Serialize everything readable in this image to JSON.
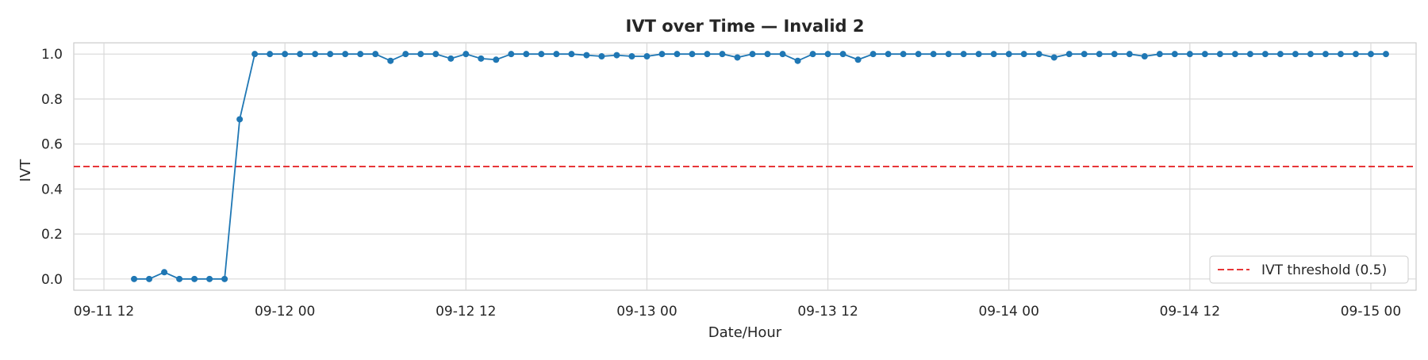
{
  "chart_data": {
    "type": "line",
    "title": "IVT over Time — Invalid 2",
    "xlabel": "Date/Hour",
    "ylabel": "IVT",
    "ylim": [
      -0.05,
      1.05
    ],
    "y_ticks": [
      0.0,
      0.2,
      0.4,
      0.6,
      0.8,
      1.0
    ],
    "y_tick_labels": [
      "0.0",
      "0.2",
      "0.4",
      "0.6",
      "0.8",
      "1.0"
    ],
    "x_range": [
      "2024-09-11 10:00",
      "2024-09-15 03:00"
    ],
    "x_ticks": [
      "2024-09-11 12:00",
      "2024-09-12 00:00",
      "2024-09-12 12:00",
      "2024-09-13 00:00",
      "2024-09-13 12:00",
      "2024-09-14 00:00",
      "2024-09-14 12:00",
      "2024-09-15 00:00"
    ],
    "x_tick_labels": [
      "09-11 12",
      "09-12 00",
      "09-12 12",
      "09-13 00",
      "09-13 12",
      "09-14 00",
      "09-14 12",
      "09-15 00"
    ],
    "grid": true,
    "legend_position": "lower-right",
    "series": [
      {
        "color": "#1f77b4",
        "x": [
          "2024-09-11 14:00",
          "2024-09-11 15:00",
          "2024-09-11 16:00",
          "2024-09-11 17:00",
          "2024-09-11 18:00",
          "2024-09-11 19:00",
          "2024-09-11 20:00",
          "2024-09-11 21:00",
          "2024-09-11 22:00",
          "2024-09-11 23:00",
          "2024-09-12 00:00",
          "2024-09-12 01:00",
          "2024-09-12 02:00",
          "2024-09-12 03:00",
          "2024-09-12 04:00",
          "2024-09-12 05:00",
          "2024-09-12 06:00",
          "2024-09-12 07:00",
          "2024-09-12 08:00",
          "2024-09-12 09:00",
          "2024-09-12 10:00",
          "2024-09-12 11:00",
          "2024-09-12 12:00",
          "2024-09-12 13:00",
          "2024-09-12 14:00",
          "2024-09-12 15:00",
          "2024-09-12 16:00",
          "2024-09-12 17:00",
          "2024-09-12 18:00",
          "2024-09-12 19:00",
          "2024-09-12 20:00",
          "2024-09-12 21:00",
          "2024-09-12 22:00",
          "2024-09-12 23:00",
          "2024-09-13 00:00",
          "2024-09-13 01:00",
          "2024-09-13 02:00",
          "2024-09-13 03:00",
          "2024-09-13 04:00",
          "2024-09-13 05:00",
          "2024-09-13 06:00",
          "2024-09-13 07:00",
          "2024-09-13 08:00",
          "2024-09-13 09:00",
          "2024-09-13 10:00",
          "2024-09-13 11:00",
          "2024-09-13 12:00",
          "2024-09-13 13:00",
          "2024-09-13 14:00",
          "2024-09-13 15:00",
          "2024-09-13 16:00",
          "2024-09-13 17:00",
          "2024-09-13 18:00",
          "2024-09-13 19:00",
          "2024-09-13 20:00",
          "2024-09-13 21:00",
          "2024-09-13 22:00",
          "2024-09-13 23:00",
          "2024-09-14 00:00",
          "2024-09-14 01:00",
          "2024-09-14 02:00",
          "2024-09-14 03:00",
          "2024-09-14 04:00",
          "2024-09-14 05:00",
          "2024-09-14 06:00",
          "2024-09-14 07:00",
          "2024-09-14 08:00",
          "2024-09-14 09:00",
          "2024-09-14 10:00",
          "2024-09-14 11:00",
          "2024-09-14 12:00",
          "2024-09-14 13:00",
          "2024-09-14 14:00",
          "2024-09-14 15:00",
          "2024-09-14 16:00",
          "2024-09-14 17:00",
          "2024-09-14 18:00",
          "2024-09-14 19:00",
          "2024-09-14 20:00",
          "2024-09-14 21:00",
          "2024-09-14 22:00",
          "2024-09-14 23:00",
          "2024-09-15 00:00",
          "2024-09-15 01:00"
        ],
        "values": [
          0.0,
          0.0,
          0.03,
          0.0,
          0.0,
          0.0,
          0.0,
          0.71,
          1.0,
          1.0,
          1.0,
          1.0,
          1.0,
          1.0,
          1.0,
          1.0,
          1.0,
          0.97,
          1.0,
          1.0,
          1.0,
          0.98,
          1.0,
          0.98,
          0.975,
          1.0,
          1.0,
          1.0,
          1.0,
          1.0,
          0.995,
          0.99,
          0.995,
          0.99,
          0.99,
          1.0,
          1.0,
          1.0,
          1.0,
          1.0,
          0.985,
          1.0,
          1.0,
          1.0,
          0.97,
          1.0,
          1.0,
          1.0,
          0.975,
          1.0,
          1.0,
          1.0,
          1.0,
          1.0,
          1.0,
          1.0,
          1.0,
          1.0,
          1.0,
          1.0,
          1.0,
          0.985,
          1.0,
          1.0,
          1.0,
          1.0,
          1.0,
          0.99,
          1.0,
          1.0,
          1.0,
          1.0,
          1.0,
          1.0,
          1.0,
          1.0,
          1.0,
          1.0,
          1.0,
          1.0,
          1.0,
          1.0,
          1.0,
          1.0
        ]
      }
    ],
    "threshold": {
      "value": 0.5,
      "label": "IVT threshold (0.5)",
      "color": "#e41a1c",
      "style": "dashed"
    }
  }
}
